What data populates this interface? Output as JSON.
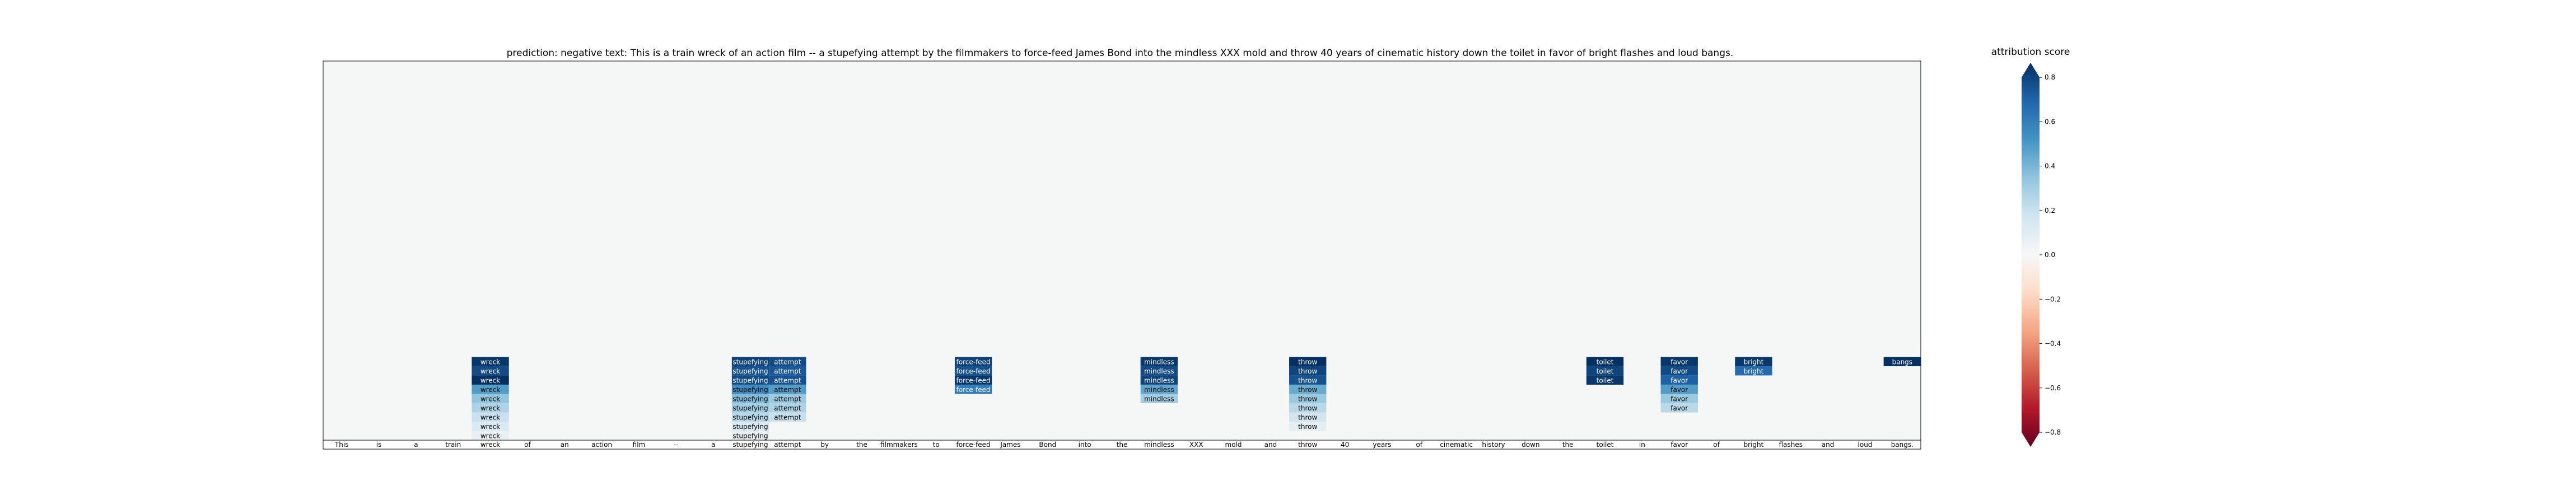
{
  "chart_data": {
    "type": "heatmap",
    "title": "prediction:  negative     text:  This is a train wreck of an action film -- a stupefying attempt by the filmmakers to force-feed James Bond into the mindless XXX mold and throw 40 years of cinematic history down the toilet in favor of bright flashes and loud bangs.",
    "tokens": [
      "This",
      "is",
      "a",
      "train",
      "wreck",
      "of",
      "an",
      "action",
      "film",
      "--",
      "a",
      "stupefying",
      "attempt",
      "by",
      "the",
      "filmmakers",
      "to",
      "force-feed",
      "James",
      "Bond",
      "into",
      "the",
      "mindless",
      "XXX",
      "mold",
      "and",
      "throw",
      "40",
      "years",
      "of",
      "cinematic",
      "history",
      "down",
      "the",
      "toilet",
      "in",
      "favor",
      "of",
      "bright",
      "flashes",
      "and",
      "loud",
      "bangs."
    ],
    "cells": [
      {
        "col": 4,
        "label": "wreck",
        "values": [
          0.78,
          0.72,
          0.8,
          0.45,
          0.32,
          0.25,
          0.18,
          0.12,
          0.06
        ]
      },
      {
        "col": 11,
        "label": "stupefying",
        "values": [
          0.75,
          0.7,
          0.72,
          0.5,
          0.35,
          0.28,
          0.22,
          0.12,
          0.06
        ]
      },
      {
        "col": 12,
        "label": "attempt",
        "values": [
          0.72,
          0.68,
          0.7,
          0.45,
          0.3,
          0.25,
          0.18
        ]
      },
      {
        "col": 17,
        "label": "force-feed",
        "values": [
          0.75,
          0.7,
          0.78,
          0.55
        ]
      },
      {
        "col": 22,
        "label": "mindless",
        "values": [
          0.78,
          0.72,
          0.74,
          0.42,
          0.28
        ]
      },
      {
        "col": 26,
        "label": "throw",
        "values": [
          0.8,
          0.74,
          0.7,
          0.4,
          0.3,
          0.22,
          0.15,
          0.08
        ]
      },
      {
        "col": 34,
        "label": "toilet",
        "values": [
          0.8,
          0.74,
          0.78
        ]
      },
      {
        "col": 36,
        "label": "favor",
        "values": [
          0.78,
          0.72,
          0.65,
          0.45,
          0.3,
          0.22
        ]
      },
      {
        "col": 38,
        "label": "bright",
        "values": [
          0.78,
          0.62
        ]
      },
      {
        "col": 42,
        "label": "bangs",
        "values": [
          0.8
        ]
      }
    ],
    "n_rows": 41,
    "background_color": "#f5f6f6",
    "colorbar": {
      "label": "attribution score",
      "range": [
        -0.8,
        0.8
      ],
      "ticks": [
        "0.8",
        "0.6",
        "0.4",
        "0.2",
        "0.0",
        "−0.2",
        "−0.4",
        "−0.6",
        "−0.8"
      ]
    }
  }
}
